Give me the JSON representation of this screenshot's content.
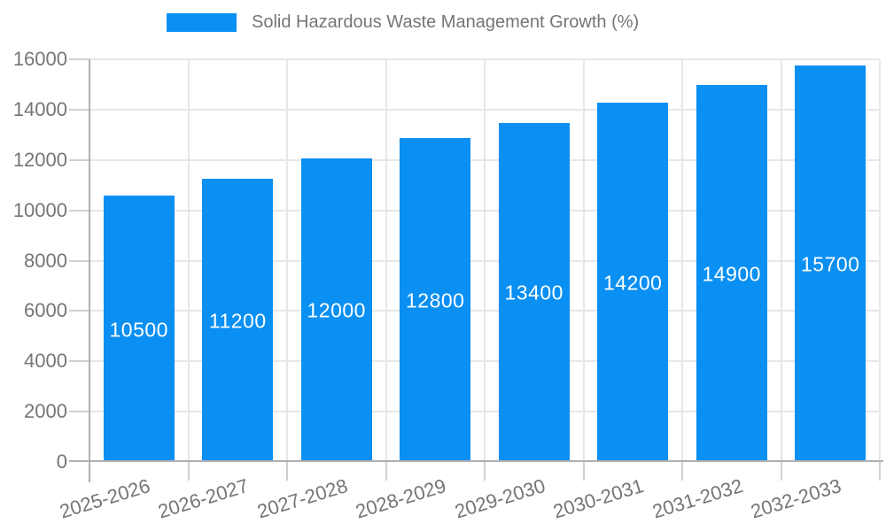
{
  "legend": {
    "label": "Solid Hazardous Waste Management Growth (%)"
  },
  "chart_data": {
    "type": "bar",
    "title": "Solid Hazardous Waste Management Growth (%)",
    "categories": [
      "2025-2026",
      "2026-2027",
      "2027-2028",
      "2028-2029",
      "2029-2030",
      "2030-2031",
      "2031-2032",
      "2032-2033"
    ],
    "values": [
      10500,
      11200,
      12000,
      12800,
      13400,
      14200,
      14900,
      15700
    ],
    "xlabel": "",
    "ylabel": "",
    "ylim": [
      0,
      16000
    ],
    "ytick_step": 2000,
    "yticks": [
      0,
      2000,
      4000,
      6000,
      8000,
      10000,
      12000,
      14000,
      16000
    ],
    "grid": true,
    "legend_position": "top",
    "value_labels": "inside-center",
    "bar_color": "#0a8ff2",
    "value_text_color": "#ffffff",
    "axis_text_color": "#757575",
    "gridline_color": "#e7e7e7",
    "tick_color": "#d0d0d0",
    "axis_line_color": "#b0b0b0"
  }
}
